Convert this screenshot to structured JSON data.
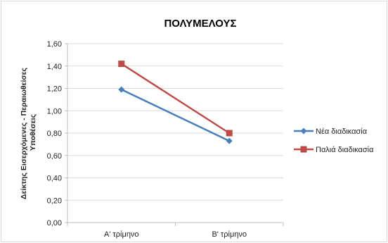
{
  "chart_data": {
    "type": "line",
    "title": "ΠΟΛΥΜΕΛΟΥΣ",
    "categories": [
      "Α'  τρίμηνο",
      "Β' τρίμηνο"
    ],
    "ylabel_line1": "Δείκτης Εισερχόμενες - Περαιωθείσες",
    "ylabel_line2": "Υποθέσεις",
    "yticks": [
      "0,00",
      "0,20",
      "0,40",
      "0,60",
      "0,80",
      "1,00",
      "1,20",
      "1,40",
      "1,60"
    ],
    "ylim": [
      0,
      1.6
    ],
    "grid": true,
    "legend_position": "right",
    "series": [
      {
        "name": "Νέα διαδικασία",
        "values": [
          1.19,
          0.73
        ],
        "color": "#4a7ebb",
        "marker": "diamond"
      },
      {
        "name": "Παλιά διαδικασία",
        "values": [
          1.42,
          0.8
        ],
        "color": "#be4b48",
        "marker": "square"
      }
    ]
  }
}
